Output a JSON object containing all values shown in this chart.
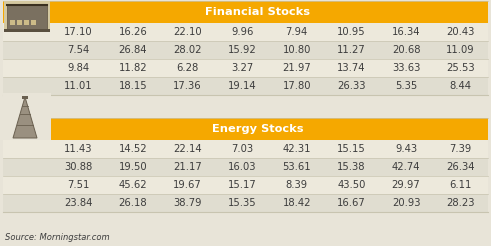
{
  "financial_title": "Financial Stocks",
  "energy_title": "Energy Stocks",
  "financial_data": [
    [
      "17.10",
      "16.26",
      "22.10",
      "9.96",
      "7.94",
      "10.95",
      "16.34",
      "20.43"
    ],
    [
      "7.54",
      "26.84",
      "28.02",
      "15.92",
      "10.80",
      "11.27",
      "20.68",
      "11.09"
    ],
    [
      "9.84",
      "11.82",
      "6.28",
      "3.27",
      "21.97",
      "13.74",
      "33.63",
      "25.53"
    ],
    [
      "11.01",
      "18.15",
      "17.36",
      "19.14",
      "17.80",
      "26.33",
      "5.35",
      "8.44"
    ]
  ],
  "energy_data": [
    [
      "11.43",
      "14.52",
      "22.14",
      "7.03",
      "42.31",
      "15.15",
      "9.43",
      "7.39"
    ],
    [
      "30.88",
      "19.50",
      "21.17",
      "16.03",
      "53.61",
      "15.38",
      "42.74",
      "26.34"
    ],
    [
      "7.51",
      "45.62",
      "19.67",
      "15.17",
      "8.39",
      "43.50",
      "29.97",
      "6.11"
    ],
    [
      "23.84",
      "26.18",
      "38.79",
      "15.35",
      "18.42",
      "16.67",
      "20.93",
      "28.23"
    ]
  ],
  "header_bg": "#F5A800",
  "header_text": "#FFFFFF",
  "row_bg": [
    "#EDE9DC",
    "#E0DDD0"
  ],
  "text_color": "#3D3D3D",
  "source_text": "Source: Morningstar.com",
  "fig_bg": "#E8E4D8",
  "border_color": "#C8C4B0"
}
